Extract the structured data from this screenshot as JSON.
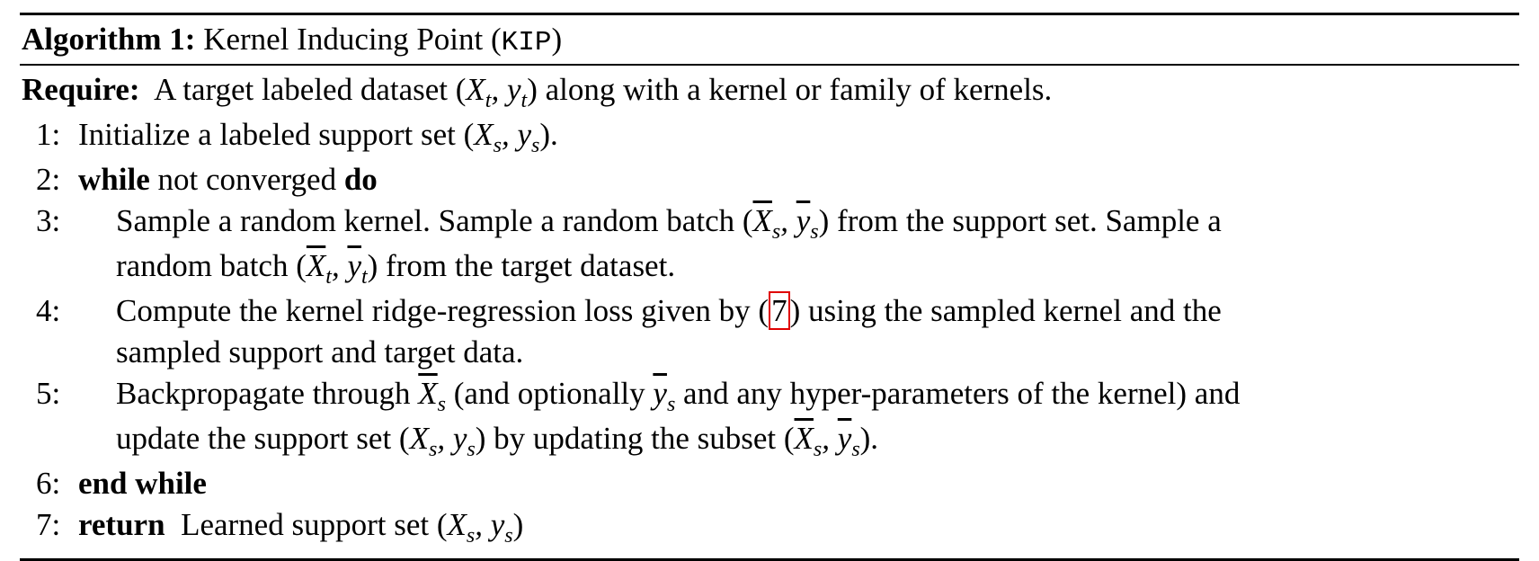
{
  "algorithm": {
    "label": "Algorithm 1:",
    "title": "Kernel Inducing Point (",
    "title_code": "KIP",
    "title_close": ")"
  },
  "require": {
    "keyword": "Require:",
    "pre": "A target labeled dataset (",
    "post": ") along with a kernel or family of kernels."
  },
  "steps": {
    "s1": {
      "num": "1:",
      "pre": "Initialize a labeled support set (",
      "post": ")."
    },
    "s2": {
      "num": "2:",
      "kw1": "while",
      "mid": " not converged ",
      "kw2": "do"
    },
    "s3": {
      "num": "3:",
      "a": "Sample a random kernel. Sample a random batch (",
      "b": ") from the support set. Sample a",
      "c": "random batch (",
      "d": ") from the target dataset."
    },
    "s4": {
      "num": "4:",
      "a": "Compute the kernel ridge-regression loss given by (",
      "ref": "7",
      "b": ") using the sampled kernel and the",
      "c": "sampled support and target data."
    },
    "s5": {
      "num": "5:",
      "a": "Backpropagate through ",
      "b": " (and optionally ",
      "c": " and any hyper-parameters of the kernel) and",
      "d": "update the support set (",
      "e": ") by updating the subset (",
      "f": ")."
    },
    "s6": {
      "num": "6:",
      "kw": "end while"
    },
    "s7": {
      "num": "7:",
      "kw": "return",
      "text": "Learned support set (",
      "post": ")"
    }
  }
}
